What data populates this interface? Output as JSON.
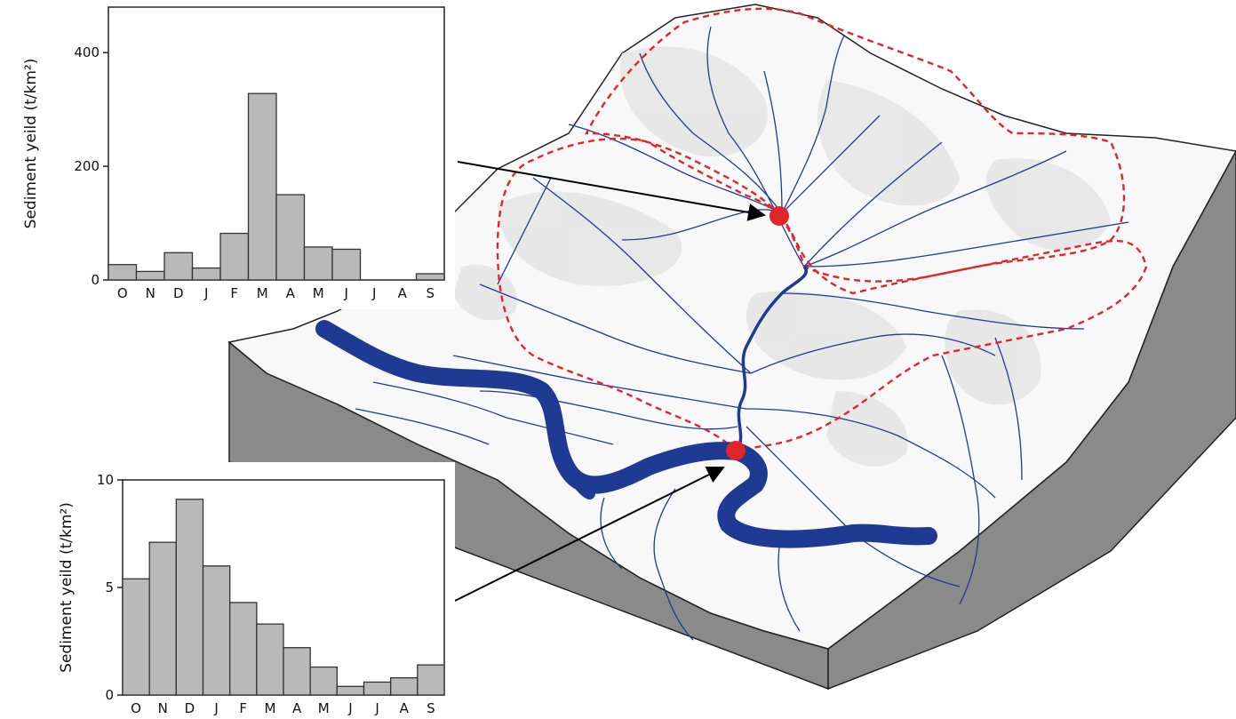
{
  "colors": {
    "river": "#1f3a93",
    "catchment_boundary": "#e0262b",
    "sample_point": "#e0262b",
    "bar_fill": "#b9b9b9",
    "bar_stroke": "#333333",
    "block_side": "#8a8a8a",
    "relief_shade": "#e6e6e6",
    "arrow": "#000000"
  },
  "icons": {
    "upper_site": "red-dot-marker",
    "outlet_site": "red-dot-marker"
  },
  "chart_data": [
    {
      "type": "bar",
      "categories": [
        "O",
        "N",
        "D",
        "J",
        "F",
        "M",
        "A",
        "M",
        "J",
        "J",
        "A",
        "S"
      ],
      "values": [
        27,
        15,
        48,
        21,
        82,
        328,
        150,
        58,
        54,
        0,
        0,
        11
      ],
      "title": "",
      "xlabel": "",
      "ylabel": "Sediment yeild (t/km²)",
      "ylim": [
        0,
        480
      ],
      "yticks": [
        0,
        200,
        400
      ],
      "grid": false,
      "legend": "none"
    },
    {
      "type": "bar",
      "categories": [
        "O",
        "N",
        "D",
        "J",
        "F",
        "M",
        "A",
        "M",
        "J",
        "J",
        "A",
        "S"
      ],
      "values": [
        5.4,
        7.1,
        9.1,
        6.0,
        4.3,
        3.3,
        2.2,
        1.3,
        0.4,
        0.6,
        0.8,
        1.4
      ],
      "title": "",
      "xlabel": "",
      "ylabel": "Sediment yeild (t/km²)",
      "ylim": [
        0,
        10
      ],
      "yticks": [
        0,
        5,
        10
      ],
      "grid": false,
      "legend": "none"
    }
  ]
}
